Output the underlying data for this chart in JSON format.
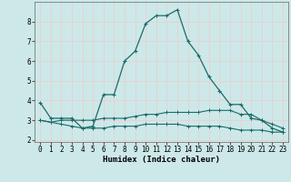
{
  "xlabel": "Humidex (Indice chaleur)",
  "bg_color": "#cde8e8",
  "grid_color": "#e8d0d0",
  "line_color": "#1a6b6b",
  "x_ticks": [
    0,
    1,
    2,
    3,
    4,
    5,
    6,
    7,
    8,
    9,
    10,
    11,
    12,
    13,
    14,
    15,
    16,
    17,
    18,
    19,
    20,
    21,
    22,
    23
  ],
  "y_ticks": [
    2,
    3,
    4,
    5,
    6,
    7,
    8
  ],
  "ylim": [
    1.9,
    9.0
  ],
  "xlim": [
    -0.5,
    23.5
  ],
  "line1_x": [
    0,
    1,
    2,
    3,
    4,
    5,
    6,
    7,
    8,
    9,
    10,
    11,
    12,
    13,
    14,
    15,
    16,
    17,
    18,
    19,
    20,
    21,
    22,
    23
  ],
  "line1_y": [
    3.9,
    3.1,
    3.1,
    3.1,
    2.6,
    2.7,
    4.3,
    4.3,
    6.0,
    6.5,
    7.9,
    8.3,
    8.3,
    8.6,
    7.0,
    6.3,
    5.2,
    4.5,
    3.8,
    3.8,
    3.1,
    3.0,
    2.6,
    2.4
  ],
  "line2_x": [
    0,
    1,
    2,
    3,
    4,
    5,
    6,
    7,
    8,
    9,
    10,
    11,
    12,
    13,
    14,
    15,
    16,
    17,
    18,
    19,
    20,
    21,
    22,
    23
  ],
  "line2_y": [
    3.0,
    2.9,
    3.0,
    3.0,
    3.0,
    3.0,
    3.1,
    3.1,
    3.1,
    3.2,
    3.3,
    3.3,
    3.4,
    3.4,
    3.4,
    3.4,
    3.5,
    3.5,
    3.5,
    3.3,
    3.3,
    3.0,
    2.8,
    2.6
  ],
  "line3_x": [
    0,
    1,
    2,
    3,
    4,
    5,
    6,
    7,
    8,
    9,
    10,
    11,
    12,
    13,
    14,
    15,
    16,
    17,
    18,
    19,
    20,
    21,
    22,
    23
  ],
  "line3_y": [
    3.0,
    2.9,
    2.8,
    2.7,
    2.6,
    2.6,
    2.6,
    2.7,
    2.7,
    2.7,
    2.8,
    2.8,
    2.8,
    2.8,
    2.7,
    2.7,
    2.7,
    2.7,
    2.6,
    2.5,
    2.5,
    2.5,
    2.4,
    2.4
  ],
  "tick_fontsize": 5.5,
  "xlabel_fontsize": 6.5
}
